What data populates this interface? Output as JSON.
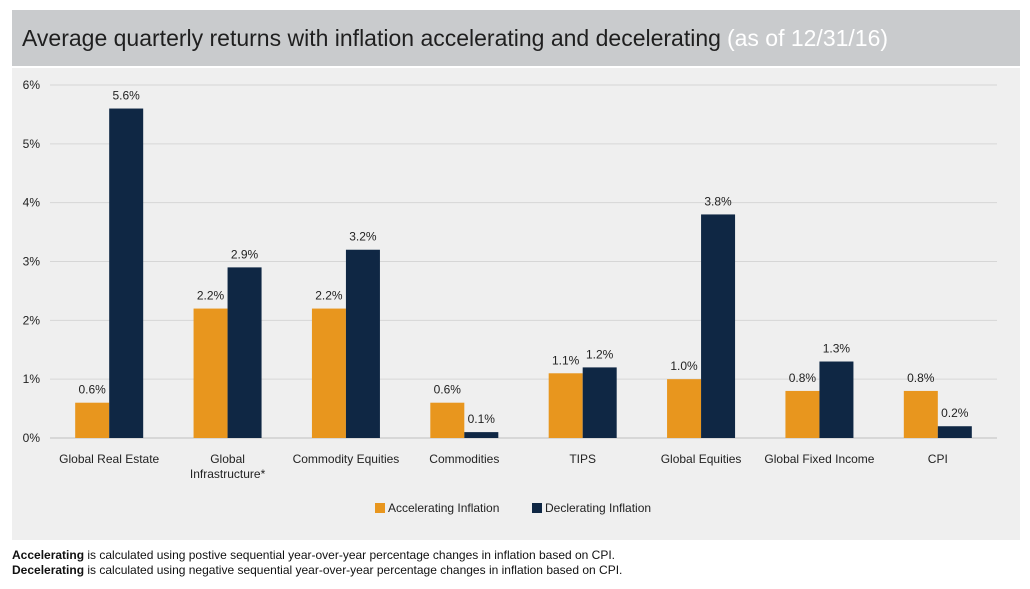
{
  "header": {
    "title": "Average quarterly returns with inflation accelerating and decelerating",
    "subtitle": "(as of 12/31/16)"
  },
  "colors": {
    "accelerating": "#e8961e",
    "decelerating": "#0f2744"
  },
  "chart_data": {
    "type": "bar",
    "categories": [
      "Global Real Estate",
      "Global Infrastructure*",
      "Commodity Equities",
      "Commodities",
      "TIPS",
      "Global Equities",
      "Global Fixed Income",
      "CPI"
    ],
    "category_lines": [
      [
        "Global Real Estate"
      ],
      [
        "Global",
        "Infrastructure*"
      ],
      [
        "Commodity Equities"
      ],
      [
        "Commodities"
      ],
      [
        "TIPS"
      ],
      [
        "Global Equities"
      ],
      [
        "Global Fixed Income"
      ],
      [
        "CPI"
      ]
    ],
    "series": [
      {
        "name": "Accelerating Inflation",
        "values": [
          0.6,
          2.2,
          2.2,
          0.6,
          1.1,
          1.0,
          0.8,
          0.8
        ],
        "labels": [
          "0.6%",
          "2.2%",
          "2.2%",
          "0.6%",
          "1.1%",
          "1.0%",
          "0.8%",
          "0.8%"
        ]
      },
      {
        "name": "Declerating Inflation",
        "values": [
          5.6,
          2.9,
          3.2,
          0.1,
          1.2,
          3.8,
          1.3,
          0.2
        ],
        "labels": [
          "5.6%",
          "2.9%",
          "3.2%",
          "0.1%",
          "1.2%",
          "3.8%",
          "1.3%",
          "0.2%"
        ]
      }
    ],
    "yticks": [
      0,
      1,
      2,
      3,
      4,
      5,
      6
    ],
    "ytick_labels": [
      "0%",
      "1%",
      "2%",
      "3%",
      "4%",
      "5%",
      "6%"
    ],
    "ylim": [
      0,
      6
    ],
    "grid": true,
    "legend_position": "bottom-center"
  },
  "notes": [
    {
      "term": "Accelerating",
      "text": " is calculated using postive sequential year-over-year percentage changes in inflation based on CPI."
    },
    {
      "term": "Decelerating",
      "text": " is calculated using negative sequential year-over-year percentage changes in inflation based on CPI."
    }
  ]
}
